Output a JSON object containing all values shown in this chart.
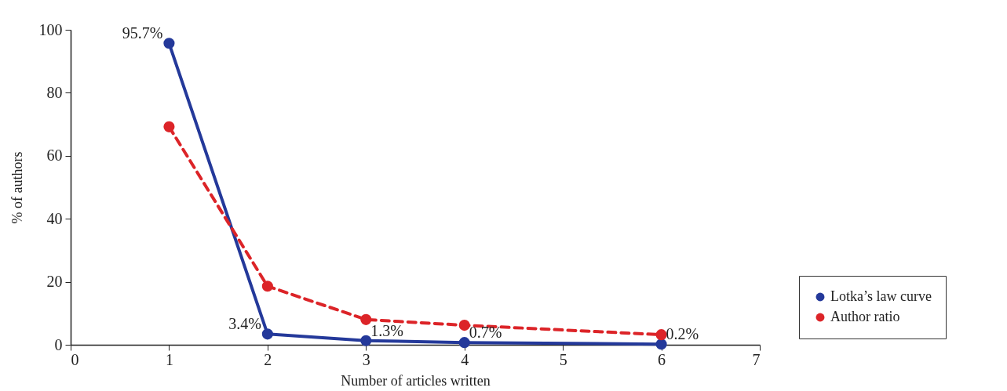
{
  "chart_data": {
    "type": "line",
    "xlabel": "Number of articles written",
    "ylabel": "% of authors",
    "x": [
      1,
      2,
      3,
      4,
      6
    ],
    "series": [
      {
        "name": "Lotka’s law curve",
        "color": "#24399a",
        "line_style": "solid",
        "values": [
          95.7,
          3.4,
          1.3,
          0.7,
          0.2
        ],
        "value_labels": [
          "95.7%",
          "3.4%",
          "1.3%",
          "0.7%",
          "0.2%"
        ]
      },
      {
        "name": "Author ratio",
        "color": "#dc2428",
        "line_style": "dashed",
        "values": [
          69.2,
          18.6,
          8.0,
          6.2,
          3.2
        ]
      }
    ],
    "xlim": [
      0,
      7
    ],
    "xticks": [
      0,
      1,
      2,
      3,
      4,
      5,
      6,
      7
    ],
    "ylim": [
      0,
      100
    ],
    "yticks": [
      0,
      20,
      40,
      60,
      80,
      100
    ],
    "marker": "circle",
    "grid": false,
    "legend": "right"
  }
}
